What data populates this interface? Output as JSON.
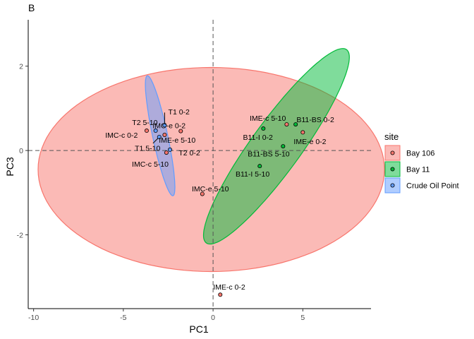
{
  "chart_data": {
    "type": "scatter",
    "panel_label": "B",
    "title": "",
    "xlabel": "PC1",
    "ylabel": "PC3",
    "xlim": [
      -10.3,
      8.8
    ],
    "ylim": [
      -3.75,
      3.1
    ],
    "x_ticks": [
      -10,
      -5,
      0,
      5
    ],
    "x_tick_labels": [
      "-10",
      "-5",
      "0",
      "5"
    ],
    "y_ticks": [
      -2,
      0,
      2
    ],
    "y_tick_labels": [
      "-2",
      "0",
      "2"
    ],
    "grid": false,
    "reference_lines": {
      "x": 0,
      "y": 0,
      "style": "dashed"
    },
    "legend": {
      "title": "site",
      "position": "right",
      "entries": [
        "Bay 106",
        "Bay 11",
        "Crude Oil Point"
      ]
    },
    "series": [
      {
        "name": "Bay 106",
        "color": "#F8766D",
        "ellipse": {
          "center": [
            -0.1,
            -0.45
          ],
          "semi_axes": [
            9.65,
            2.42
          ],
          "rotation_deg": 0
        },
        "points": [
          {
            "x": -3.7,
            "y": 0.47,
            "label": "IMC-c 0-2"
          },
          {
            "x": -1.8,
            "y": 0.46,
            "label": "IMC-e 0-2"
          },
          {
            "x": -2.7,
            "y": 0.37,
            "label": "IME-e 5-10"
          },
          {
            "x": -2.6,
            "y": -0.05,
            "label": "T2 0-2"
          },
          {
            "x": -0.6,
            "y": -1.03,
            "label": "IMC-e 5-10"
          },
          {
            "x": 4.1,
            "y": 0.62,
            "label": "IME-c 5-10"
          },
          {
            "x": 5.0,
            "y": 0.43,
            "label": "IME-e 0-2"
          },
          {
            "x": 0.4,
            "y": -3.42,
            "label": "IME-c 0-2"
          }
        ]
      },
      {
        "name": "Bay 11",
        "color": "#00BA38",
        "ellipse": {
          "center": [
            3.53,
            0.1
          ],
          "semi_axes": [
            4.6,
            0.85
          ],
          "rotation_deg": 28.5
        },
        "points": [
          {
            "x": 2.8,
            "y": 0.52,
            "label": "B11-I 0-2"
          },
          {
            "x": 4.6,
            "y": 0.62,
            "label": "B11-BS 0-2"
          },
          {
            "x": 3.9,
            "y": 0.1,
            "label": "B11-BS 5-10"
          },
          {
            "x": 2.6,
            "y": -0.37,
            "label": "B11-I 5-10"
          }
        ]
      },
      {
        "name": "Crude Oil Point",
        "color": "#619CFF",
        "ellipse": {
          "center": [
            -2.95,
            0.35
          ],
          "semi_axes": [
            1.6,
            0.38
          ],
          "rotation_deg": -62
        },
        "points": [
          {
            "x": -2.7,
            "y": 0.6,
            "label": "T1 0-2"
          },
          {
            "x": -3.2,
            "y": 0.47,
            "label": "T2 5-10"
          },
          {
            "x": -3.0,
            "y": 0.32,
            "label": "T1 5-10"
          },
          {
            "x": -2.4,
            "y": 0.02,
            "label": "IMC-c 5-10"
          }
        ]
      }
    ],
    "point_labels": [
      {
        "text": "IMC-c 0-2",
        "x": -5.1,
        "y": 0.37
      },
      {
        "text": "IMC-e 0-2",
        "x": -2.45,
        "y": 0.6
      },
      {
        "text": "IME-e 5-10",
        "x": -2.0,
        "y": 0.25
      },
      {
        "text": "T2 0-2",
        "x": -1.32,
        "y": -0.05
      },
      {
        "text": "IMC-e 5-10",
        "x": -0.15,
        "y": -0.9
      },
      {
        "text": "IME-c 5-10",
        "x": 3.05,
        "y": 0.77
      },
      {
        "text": "IME-e 0-2",
        "x": 5.4,
        "y": 0.22
      },
      {
        "text": "IME-c 0-2",
        "x": 0.9,
        "y": -3.23
      },
      {
        "text": "B11-I 0-2",
        "x": 2.5,
        "y": 0.32
      },
      {
        "text": "B11-BS 0-2",
        "x": 5.7,
        "y": 0.74
      },
      {
        "text": "B11-BS 5-10",
        "x": 3.1,
        "y": -0.07
      },
      {
        "text": "B11-I 5-10",
        "x": 2.2,
        "y": -0.55
      },
      {
        "text": "T1 0-2",
        "x": -1.9,
        "y": 0.92
      },
      {
        "text": "T2 5-10",
        "x": -3.8,
        "y": 0.67
      },
      {
        "text": "T1 5-10",
        "x": -3.65,
        "y": 0.06
      },
      {
        "text": "IMC-c 5-10",
        "x": -3.5,
        "y": -0.32
      }
    ],
    "label_segments": [
      {
        "from": [
          -2.7,
          0.6
        ],
        "to": [
          -2.7,
          0.9
        ]
      },
      {
        "from": [
          -3.0,
          0.32
        ],
        "to": [
          -3.35,
          0.17
        ]
      }
    ]
  }
}
